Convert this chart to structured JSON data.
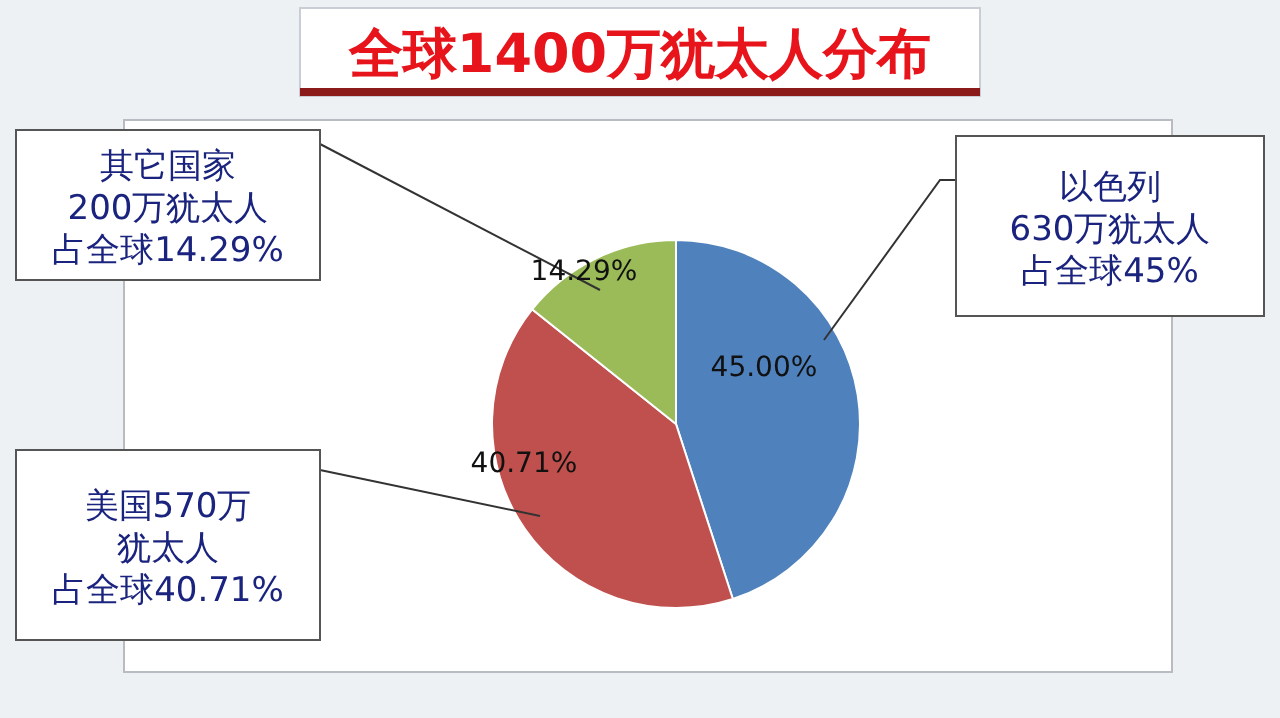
{
  "chart_data": {
    "type": "pie",
    "title": "全球1400万犹太人分布",
    "categories": [
      null,
      null,
      null
    ],
    "values": [
      45.0,
      40.71,
      14.29
    ],
    "value_labels": [
      "45.00%",
      "40.71%",
      "14.29%"
    ],
    "colors": [
      "#4f81bd",
      "#c0504d",
      "#9bbb59"
    ],
    "annotations": [
      "以色列",
      "630万犹太人",
      "占全球45%",
      "美国570万",
      "犹太人",
      "占全球40.71%",
      "其它国家",
      "200万犹太人",
      "占全球14.29%"
    ]
  }
}
